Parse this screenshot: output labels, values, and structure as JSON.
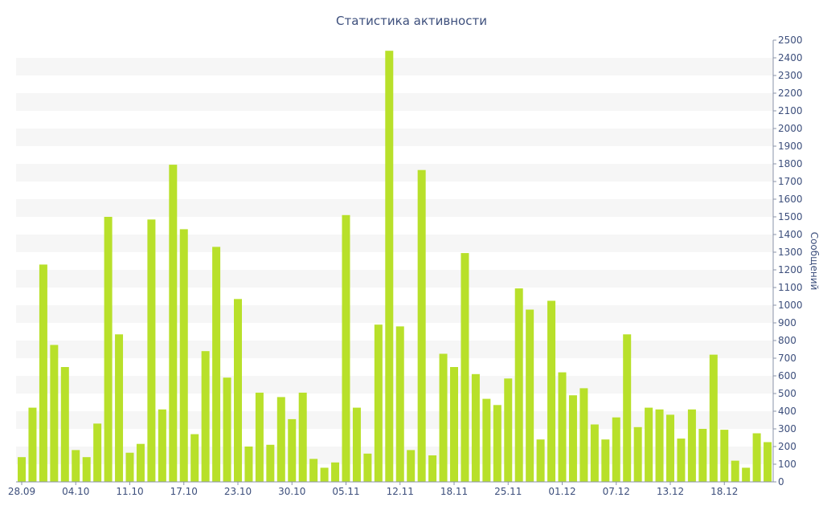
{
  "chart_data": {
    "type": "bar",
    "title": "Статистика активности",
    "xlabel": "",
    "ylabel": "Сообщений",
    "ylim": [
      0,
      2500
    ],
    "y_ticks": [
      0,
      100,
      200,
      300,
      400,
      500,
      600,
      700,
      800,
      900,
      1000,
      1100,
      1200,
      1300,
      1400,
      1500,
      1600,
      1700,
      1800,
      1900,
      2000,
      2100,
      2200,
      2300,
      2400,
      2500
    ],
    "x_tick_labels": [
      "28.09",
      "04.10",
      "11.10",
      "17.10",
      "23.10",
      "30.10",
      "05.11",
      "12.11",
      "18.11",
      "25.11",
      "01.12",
      "07.12",
      "13.12",
      "18.12"
    ],
    "x_tick_label_indices": [
      0,
      5,
      10,
      15,
      20,
      25,
      30,
      35,
      40,
      45,
      50,
      55,
      60,
      65
    ],
    "grid": "horizontal-bands",
    "y_axis_position": "right",
    "bar_color": "#b8e02a",
    "band_color": "#f6f6f6",
    "values": [
      140,
      420,
      1230,
      775,
      650,
      180,
      140,
      330,
      1500,
      835,
      165,
      215,
      1485,
      410,
      1795,
      1430,
      270,
      740,
      1330,
      590,
      1035,
      200,
      505,
      210,
      480,
      355,
      505,
      130,
      80,
      110,
      1510,
      420,
      160,
      890,
      2440,
      880,
      180,
      1765,
      150,
      725,
      650,
      1295,
      610,
      470,
      435,
      585,
      1095,
      975,
      240,
      1025,
      620,
      490,
      530,
      325,
      240,
      365,
      835,
      310,
      420,
      410,
      380,
      245,
      410,
      300,
      720,
      295,
      120,
      80,
      275,
      225
    ]
  }
}
